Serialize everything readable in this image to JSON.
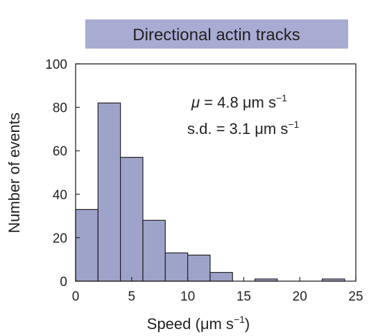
{
  "colors": {
    "bar_fill": "#9ea3c9",
    "bar_stroke": "#231f20",
    "title_band": "#a8acd3",
    "axis": "#231f20"
  },
  "chart_data": {
    "type": "bar",
    "title": "Directional actin tracks",
    "xlabel": "Speed (μm s",
    "xlabel_sup": "−1",
    "xlabel_close": ")",
    "ylabel": "Number of events",
    "xlim": [
      0,
      25
    ],
    "ylim": [
      0,
      100
    ],
    "xticks": [
      0,
      5,
      10,
      15,
      20,
      25
    ],
    "yticks": [
      0,
      20,
      40,
      60,
      80,
      100
    ],
    "bin_width": 2,
    "bins": [
      {
        "x0": 0,
        "x1": 2,
        "value": 33
      },
      {
        "x0": 2,
        "x1": 4,
        "value": 82
      },
      {
        "x0": 4,
        "x1": 6,
        "value": 57
      },
      {
        "x0": 6,
        "x1": 8,
        "value": 28
      },
      {
        "x0": 8,
        "x1": 10,
        "value": 13
      },
      {
        "x0": 10,
        "x1": 12,
        "value": 12
      },
      {
        "x0": 12,
        "x1": 14,
        "value": 4
      },
      {
        "x0": 14,
        "x1": 16,
        "value": 0
      },
      {
        "x0": 16,
        "x1": 18,
        "value": 1
      },
      {
        "x0": 18,
        "x1": 20,
        "value": 0
      },
      {
        "x0": 20,
        "x1": 22,
        "value": 0
      },
      {
        "x0": 22,
        "x1": 24,
        "value": 1
      }
    ],
    "annotations": {
      "mean_symbol": "μ",
      "mean_text": " = 4.8 μm s",
      "mean_sup": "−1",
      "sd_text": "s.d. = 3.1 μm s",
      "sd_sup": "−1"
    },
    "grid": false
  }
}
